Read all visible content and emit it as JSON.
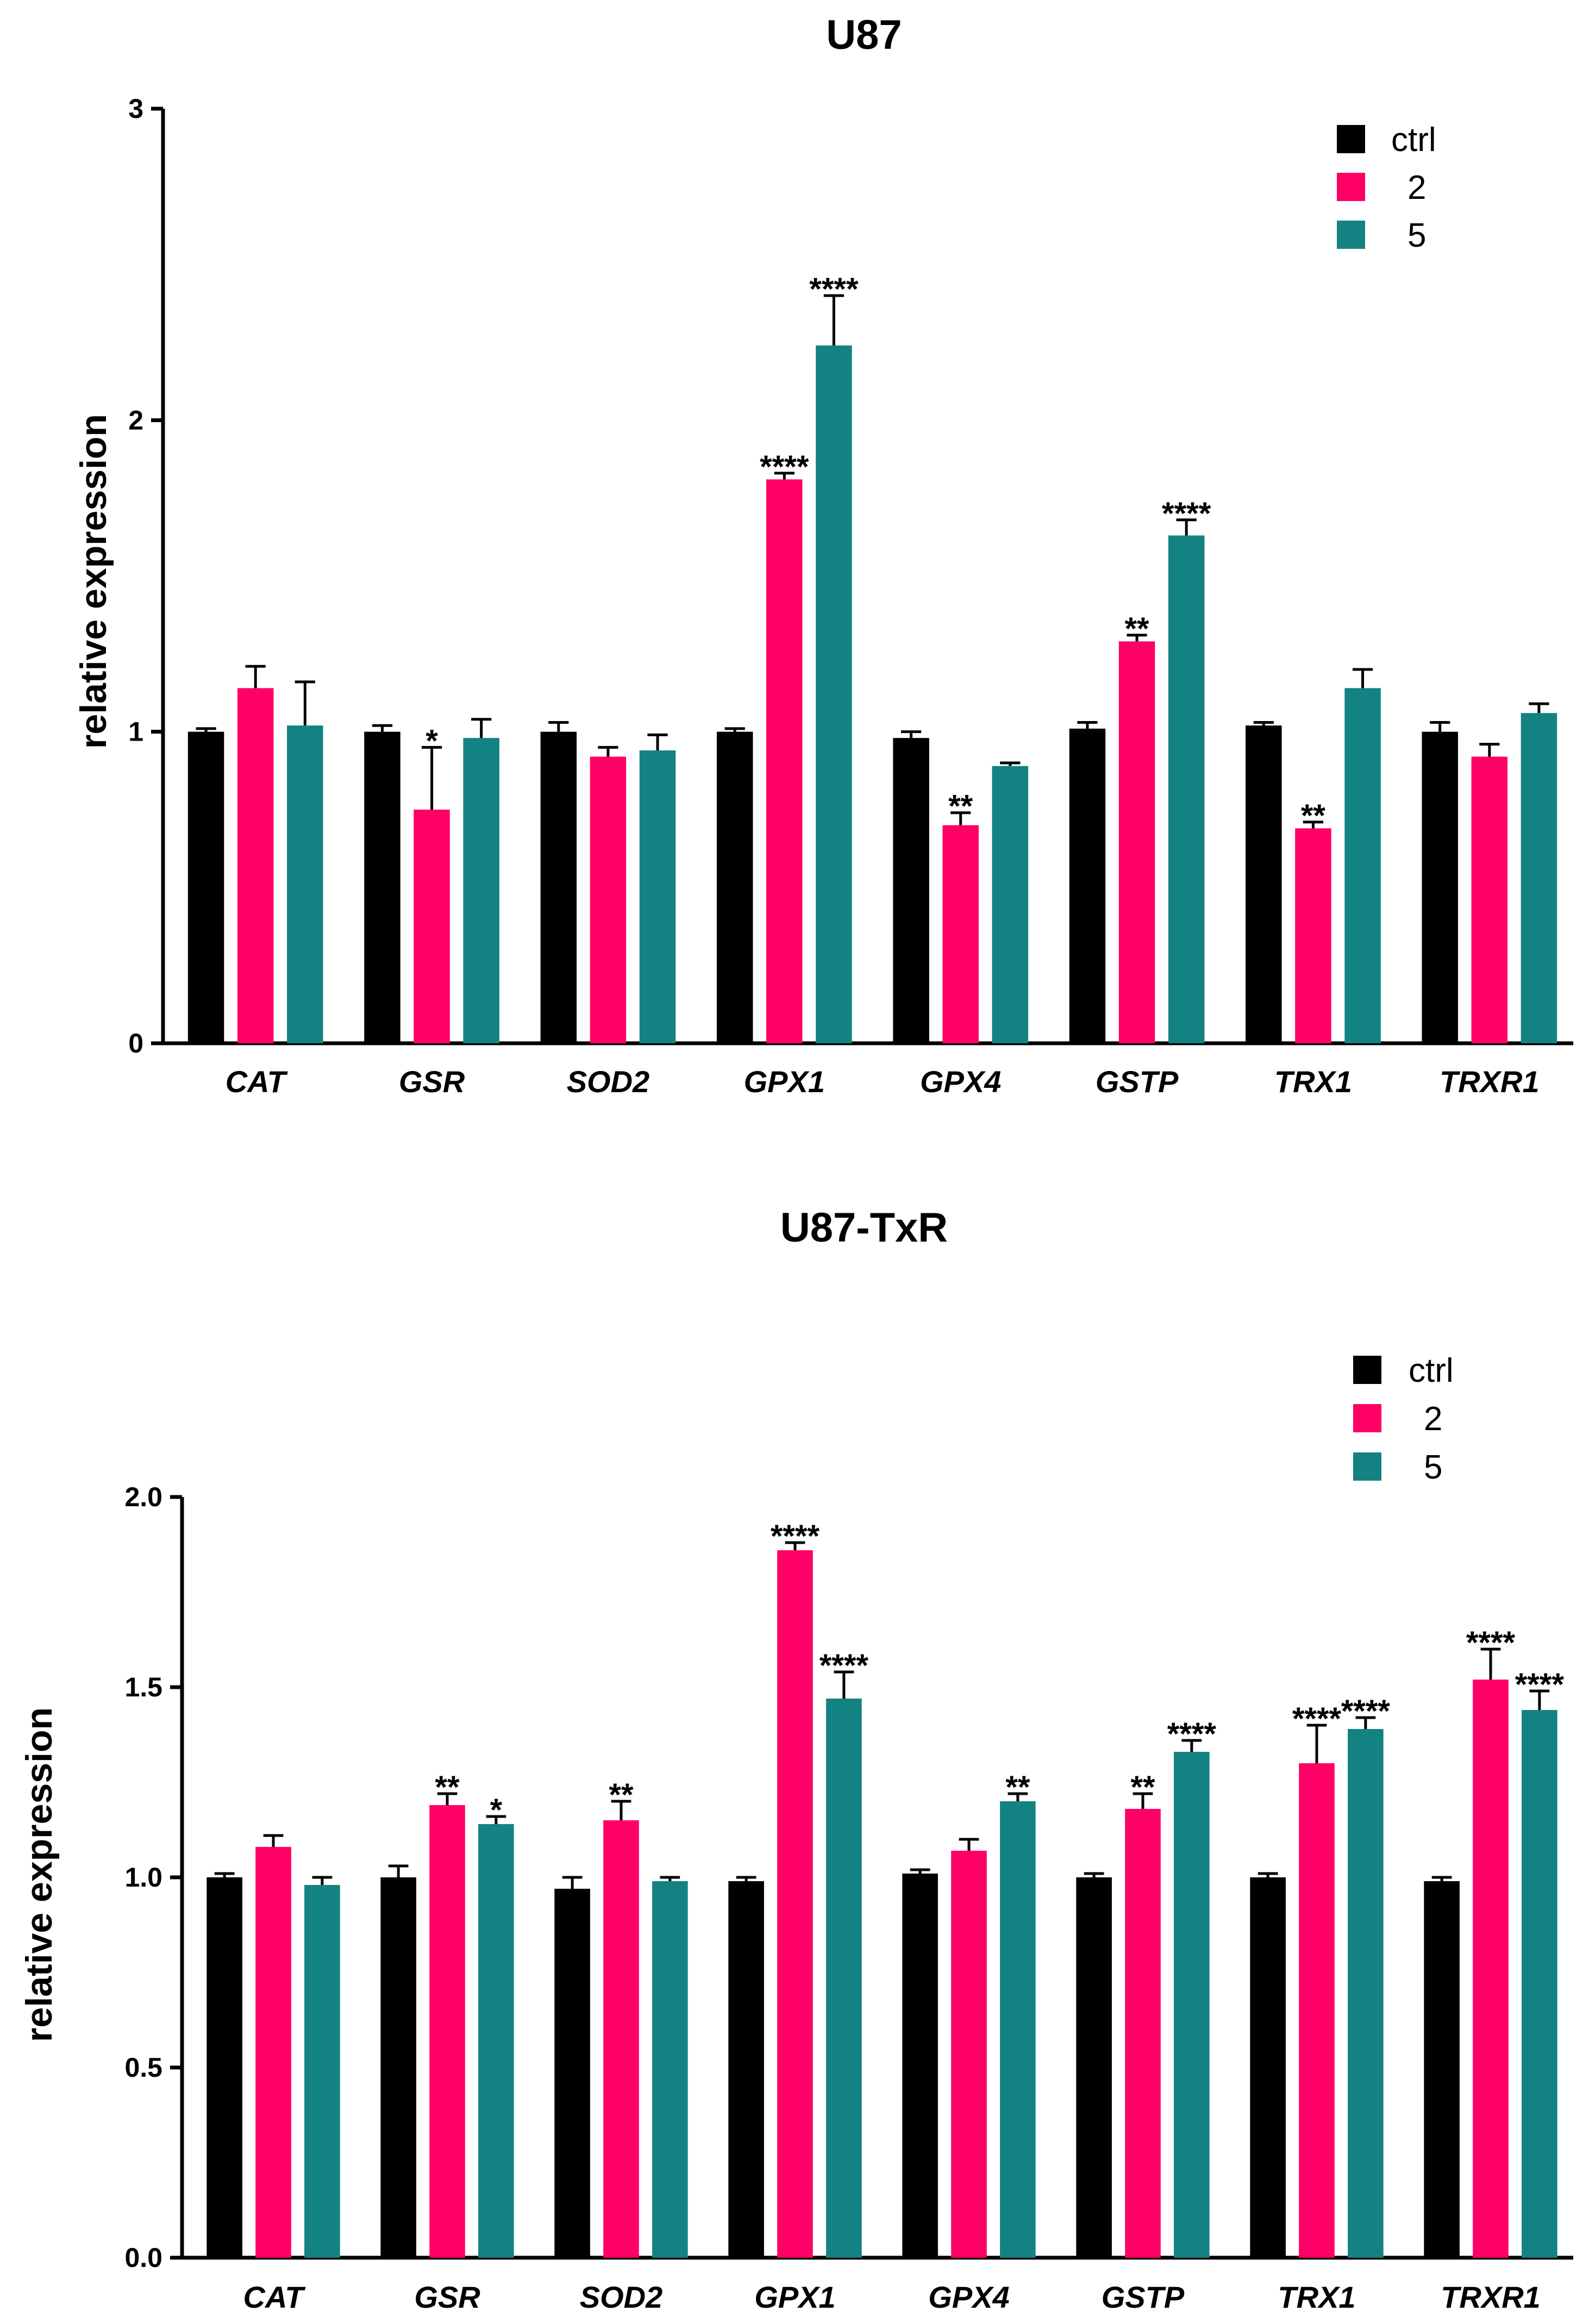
{
  "chart_data": [
    {
      "type": "bar",
      "title": "U87",
      "xlabel": "",
      "ylabel": "relative expression",
      "ylim": [
        0,
        3
      ],
      "yticks": [
        0,
        1,
        2,
        3
      ],
      "categories": [
        "CAT",
        "GSR",
        "SOD2",
        "GPX1",
        "GPX4",
        "GSTP",
        "TRX1",
        "TRXR1"
      ],
      "series": [
        {
          "name": "ctrl",
          "color": "#000000",
          "values": [
            1.0,
            1.0,
            1.0,
            1.0,
            0.98,
            1.01,
            1.02,
            1.0
          ],
          "errors": [
            0.01,
            0.02,
            0.03,
            0.01,
            0.02,
            0.02,
            0.01,
            0.03
          ],
          "sig": [
            "",
            "",
            "",
            "",
            "",
            "",
            "",
            ""
          ]
        },
        {
          "name": "2",
          "color": "#ff0066",
          "values": [
            1.14,
            0.75,
            0.92,
            1.81,
            0.7,
            1.29,
            0.69,
            0.92
          ],
          "errors": [
            0.07,
            0.2,
            0.03,
            0.02,
            0.04,
            0.02,
            0.02,
            0.04
          ],
          "sig": [
            "",
            "*",
            "",
            "****",
            "**",
            "**",
            "**",
            ""
          ]
        },
        {
          "name": "5",
          "color": "#138282",
          "values": [
            1.02,
            0.98,
            0.94,
            2.24,
            0.89,
            1.63,
            1.14,
            1.06
          ],
          "errors": [
            0.14,
            0.06,
            0.05,
            0.16,
            0.01,
            0.05,
            0.06,
            0.03
          ],
          "sig": [
            "",
            "",
            "",
            "****",
            "",
            "****",
            "",
            ""
          ]
        }
      ],
      "legend": {
        "position": "top-right",
        "entries": [
          "ctrl",
          "2",
          "5"
        ]
      }
    },
    {
      "type": "bar",
      "title": "U87-TxR",
      "xlabel": "",
      "ylabel": "relative expression",
      "ylim": [
        0,
        2.0
      ],
      "yticks": [
        "0.0",
        "0.5",
        "1.0",
        "1.5",
        "2.0"
      ],
      "categories": [
        "CAT",
        "GSR",
        "SOD2",
        "GPX1",
        "GPX4",
        "GSTP",
        "TRX1",
        "TRXR1"
      ],
      "series": [
        {
          "name": "ctrl",
          "color": "#000000",
          "values": [
            1.0,
            1.0,
            0.97,
            0.99,
            1.01,
            1.0,
            1.0,
            0.99
          ],
          "errors": [
            0.01,
            0.03,
            0.03,
            0.01,
            0.01,
            0.01,
            0.01,
            0.01
          ],
          "sig": [
            "",
            "",
            "",
            "",
            "",
            "",
            "",
            ""
          ]
        },
        {
          "name": "2",
          "color": "#ff0066",
          "values": [
            1.08,
            1.19,
            1.15,
            1.86,
            1.07,
            1.18,
            1.3,
            1.52
          ],
          "errors": [
            0.03,
            0.03,
            0.05,
            0.02,
            0.03,
            0.04,
            0.1,
            0.08
          ],
          "sig": [
            "",
            "**",
            "**",
            "****",
            "",
            "**",
            "****",
            "****"
          ]
        },
        {
          "name": "5",
          "color": "#138282",
          "values": [
            0.98,
            1.14,
            0.99,
            1.47,
            1.2,
            1.33,
            1.39,
            1.44
          ],
          "errors": [
            0.02,
            0.02,
            0.01,
            0.07,
            0.02,
            0.03,
            0.03,
            0.05
          ],
          "sig": [
            "",
            "*",
            "",
            "****",
            "**",
            "****",
            "****",
            "****"
          ]
        }
      ],
      "legend": {
        "position": "top-right",
        "entries": [
          "ctrl",
          "2",
          "5"
        ]
      }
    }
  ]
}
